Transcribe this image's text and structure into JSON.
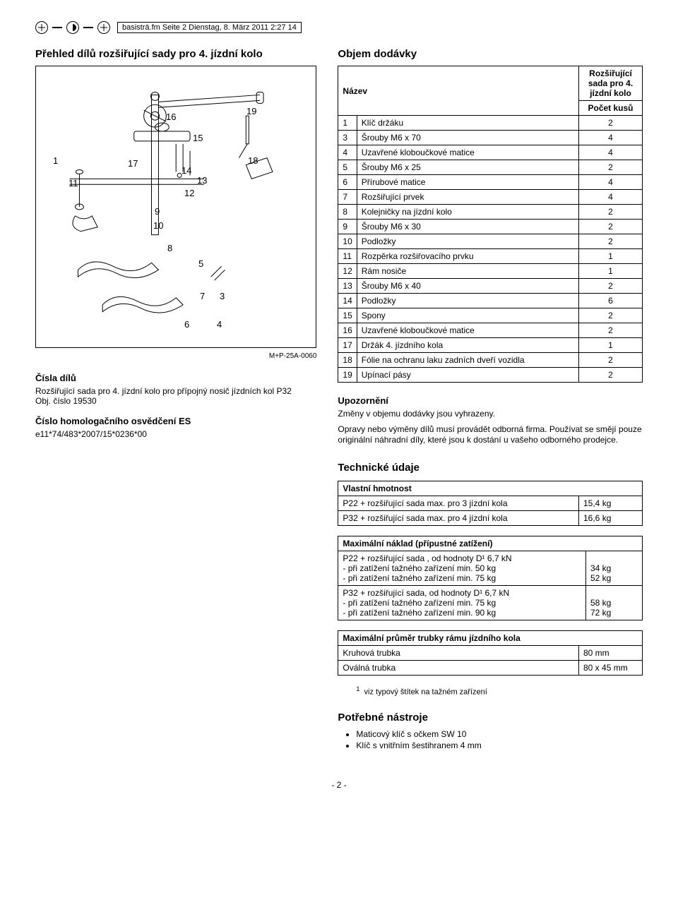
{
  "header_ref": "basisträ.fm  Seite 2  Dienstag, 8. März 2011  2:27 14",
  "overview_title": "Přehled dílů rozšiřující sady pro 4. jízdní kolo",
  "diagram_ref": "M+P-25A-0060",
  "callouts": [
    "1",
    "3",
    "4",
    "5",
    "6",
    "7",
    "8",
    "9",
    "10",
    "11",
    "12",
    "13",
    "14",
    "15",
    "16",
    "17",
    "18",
    "19"
  ],
  "part_numbers": {
    "heading": "Čísla dílů",
    "line1": "Rozšiřující sada pro 4. jízdní kolo pro přípojný nosič jízdních kol P32",
    "line2": "Obj. číslo 19530"
  },
  "homolog": {
    "heading": "Číslo homologačního osvědčení ES",
    "value": "e11*74/483*2007/15*0236*00"
  },
  "delivery": {
    "title": "Objem dodávky",
    "col_name": "Název",
    "col_set": "Rozšiřující sada pro 4. jízdní kolo",
    "col_qty": "Počet kusů",
    "rows": [
      {
        "n": "1",
        "name": "Klíč držáku",
        "q": "2"
      },
      {
        "n": "3",
        "name": "Šrouby M6 x 70",
        "q": "4"
      },
      {
        "n": "4",
        "name": "Uzavřené kloboučkové matice",
        "q": "4"
      },
      {
        "n": "5",
        "name": "Šrouby M6 x 25",
        "q": "2"
      },
      {
        "n": "6",
        "name": "Přírubové matice",
        "q": "4"
      },
      {
        "n": "7",
        "name": "Rozšiřující prvek",
        "q": "4"
      },
      {
        "n": "8",
        "name": "Kolejničky na jízdní kolo",
        "q": "2"
      },
      {
        "n": "9",
        "name": "Šrouby M6 x 30",
        "q": "2"
      },
      {
        "n": "10",
        "name": "Podložky",
        "q": "2"
      },
      {
        "n": "11",
        "name": "Rozpěrka rozšiřovacího prvku",
        "q": "1"
      },
      {
        "n": "12",
        "name": "Rám nosiče",
        "q": "1"
      },
      {
        "n": "13",
        "name": "Šrouby M6 x 40",
        "q": "2"
      },
      {
        "n": "14",
        "name": "Podložky",
        "q": "6"
      },
      {
        "n": "15",
        "name": "Spony",
        "q": "2"
      },
      {
        "n": "16",
        "name": "Uzavřené kloboučkové matice",
        "q": "2"
      },
      {
        "n": "17",
        "name": "Držák 4. jízdního kola",
        "q": "1"
      },
      {
        "n": "18",
        "name": "Fólie na ochranu laku zadních dveří vozidla",
        "q": "2"
      },
      {
        "n": "19",
        "name": "Upínací pásy",
        "q": "2"
      }
    ]
  },
  "notice": {
    "heading": "Upozornění",
    "p1": "Změny v objemu dodávky jsou vyhrazeny.",
    "p2": "Opravy nebo výměny dílů musí provádět odborná firma. Používat se smějí pouze originální náhradní díly, které jsou k dostání u vašeho odborného prodejce."
  },
  "tech": {
    "heading": "Technické údaje",
    "weight_head": "Vlastní hmotnost",
    "weight_rows": [
      {
        "name": "P22 + rozšiřující sada max. pro 3 jízdní kola",
        "v": "15,4 kg"
      },
      {
        "name": "P32 + rozšiřující sada max. pro 4 jízdní kola",
        "v": "16,6 kg"
      }
    ],
    "load_head": "Maximální náklad (přípustné zatížení)",
    "load_rows": [
      {
        "name": "P22 + rozšiřující sada , od hodnoty D¹ 6,7 kN\n- při zatížení tažného zařízení min. 50 kg\n- při zatížení tažného zařízení min. 75 kg",
        "v": "\n34 kg\n52 kg"
      },
      {
        "name": " P32 + rozšiřující sada, od hodnoty D¹ 6,7 kN\n- při zatížení tažného zařízení min. 75 kg\n- při zatížení tažného zařízení min. 90 kg",
        "v": "\n58 kg\n72 kg"
      }
    ],
    "tube_head": "Maximální průměr trubky rámu jízdního kola",
    "tube_rows": [
      {
        "name": "Kruhová trubka",
        "v": "80 mm"
      },
      {
        "name": "Oválná trubka",
        "v": "80 x 45 mm"
      }
    ],
    "footnote_marker": "1",
    "footnote": "viz typový štítek na tažném zařízení"
  },
  "tools": {
    "heading": "Potřebné nástroje",
    "items": [
      "Maticový klíč s očkem SW 10",
      "Klíč s vnitřním šestihranem 4 mm"
    ]
  },
  "page_num": "- 2 -"
}
